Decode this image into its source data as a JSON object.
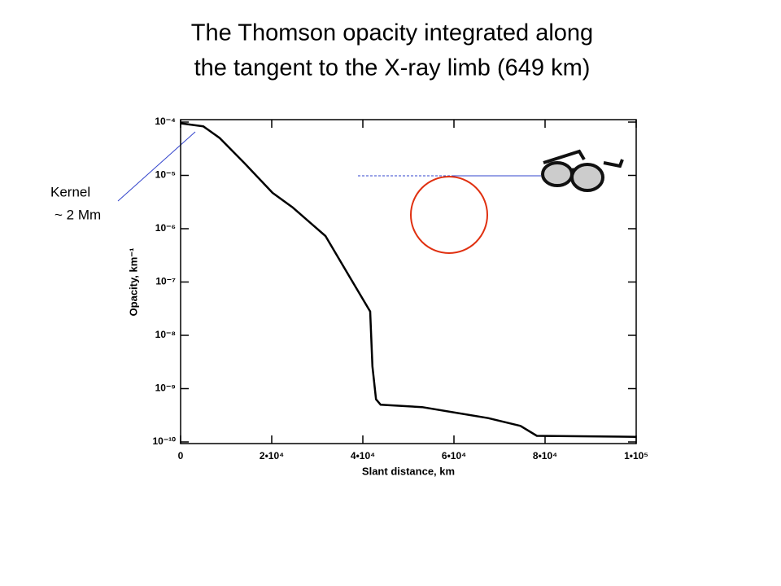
{
  "chart_data": {
    "type": "line",
    "title": [
      "The Thomson opacity integrated along",
      "the tangent to the X-ray limb (649 km)"
    ],
    "xlabel": "Slant distance, km",
    "ylabel": "Opacity, km⁻¹",
    "annotations": [
      "Kernel",
      "~ 2 Mm"
    ],
    "log_y": true,
    "xlim": [
      0,
      100000
    ],
    "ylim": [
      1e-10,
      0.0001
    ],
    "xticks": [
      0,
      {
        "value": 20000,
        "label": "2•10⁴"
      },
      {
        "value": 40000,
        "label": "4•10⁴"
      },
      {
        "value": 60000,
        "label": "6•10⁴"
      },
      {
        "value": 80000,
        "label": "8•10⁴"
      },
      {
        "value": 100000,
        "label": "1•10⁵"
      }
    ],
    "yticks": [
      {
        "value": 1e-10,
        "label": "10⁻¹⁰"
      },
      {
        "value": 1e-09,
        "label": "10⁻⁹"
      },
      {
        "value": 1e-08,
        "label": "10⁻⁸"
      },
      {
        "value": 1e-07,
        "label": "10⁻⁷"
      },
      {
        "value": 1e-06,
        "label": "10⁻⁶"
      },
      {
        "value": 1e-05,
        "label": "10⁻⁵"
      },
      {
        "value": 0.0001,
        "label": "10⁻⁴"
      }
    ],
    "x": [
      0,
      5000,
      8600,
      14000,
      20200,
      24600,
      31800,
      37100,
      41600,
      42100,
      42900,
      43900,
      53000,
      67500,
      74600,
      78200,
      100000
    ],
    "series": [
      {
        "color": "#000000",
        "values": [
          9.5e-05,
          8.3e-05,
          5e-05,
          1.7e-05,
          4.7e-06,
          2.5e-06,
          7.3e-07,
          1.25e-07,
          2.8e-08,
          2.6e-09,
          6.3e-10,
          5e-10,
          4.5e-10,
          2.8e-10,
          2e-10,
          1.3e-10,
          1.25e-10
        ]
      }
    ]
  }
}
